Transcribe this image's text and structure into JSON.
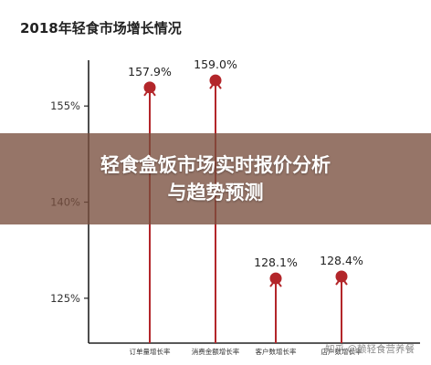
{
  "colors": {
    "bar": "#b3262a",
    "axis": "#222222",
    "banner": "#784e3e"
  },
  "chart_data": {
    "type": "bar",
    "title": "2018年轻食市场增长情况",
    "categories": [
      "订单量增长率",
      "消费金额增长率",
      "客户数增长率",
      "店户数增长率"
    ],
    "values": [
      157.9,
      159.0,
      128.1,
      128.4
    ],
    "data_labels": [
      "157.9%",
      "159.0%",
      "128.1%",
      "128.4%"
    ],
    "y_ticks": [
      125,
      140,
      155
    ],
    "y_tick_labels": [
      "125%",
      "140%",
      "155%"
    ],
    "ylim": [
      118,
      163
    ],
    "xlabel": "",
    "ylabel": "",
    "grid": false,
    "marker_style": "lollipop-arrow"
  },
  "banner": {
    "line1": "轻食盒饭市场实时报价分析",
    "line2": "与趋势预测"
  },
  "watermark": "知乎 @赖轻食营养餐"
}
